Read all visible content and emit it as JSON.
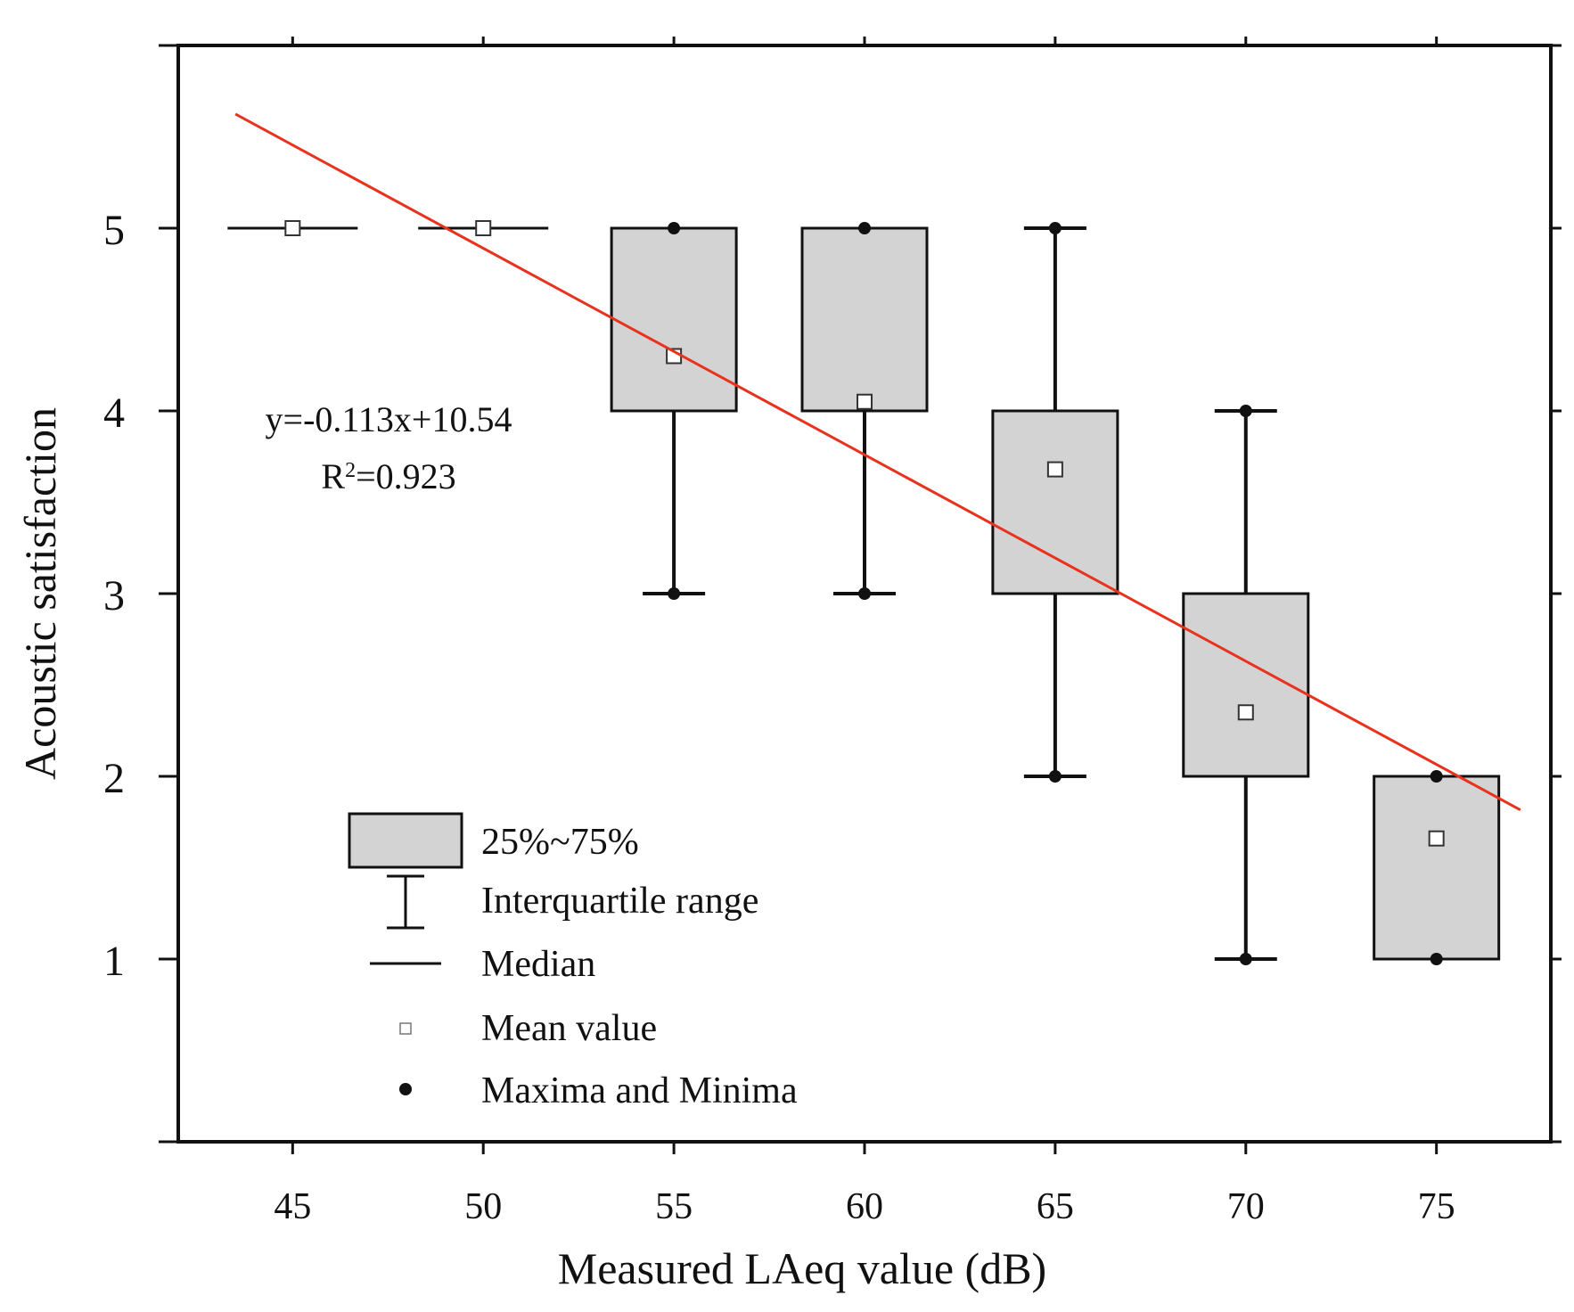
{
  "chart_data": {
    "type": "box",
    "title": "",
    "xlabel": "Measured LAeq value (dB)",
    "ylabel": "Acoustic satisfaction",
    "xlim": [
      42,
      78
    ],
    "ylim": [
      0,
      6
    ],
    "xticks": [
      "45",
      "50",
      "55",
      "60",
      "65",
      "70",
      "75"
    ],
    "yticks": [
      "1",
      "2",
      "3",
      "4",
      "5"
    ],
    "box_color": "#d3d3d3",
    "line_color": "#e8321e",
    "boxes": [
      {
        "x": 45,
        "min": 5,
        "q1": 5,
        "median": 5,
        "q3": 5,
        "max": 5,
        "mean": 5.0
      },
      {
        "x": 50,
        "min": 5,
        "q1": 5,
        "median": 5,
        "q3": 5,
        "max": 5,
        "mean": 5.0
      },
      {
        "x": 55,
        "min": 3,
        "q1": 4,
        "median": 5,
        "q3": 5,
        "max": 5,
        "mean": 4.3
      },
      {
        "x": 60,
        "min": 3,
        "q1": 4,
        "median": 5,
        "q3": 5,
        "max": 5,
        "mean": 4.05
      },
      {
        "x": 65,
        "min": 2,
        "q1": 3,
        "median": 4,
        "q3": 4,
        "max": 5,
        "mean": 3.68
      },
      {
        "x": 70,
        "min": 1,
        "q1": 2,
        "median": 3,
        "q3": 3,
        "max": 4,
        "mean": 2.35
      },
      {
        "x": 75,
        "min": 1,
        "q1": 1,
        "median": 2,
        "q3": 2,
        "max": 2,
        "mean": 1.66
      }
    ],
    "fit": {
      "slope": -0.113,
      "intercept": 10.54,
      "x_range": [
        43.5,
        77.2
      ]
    },
    "annotations": {
      "equation": "y=-0.113x+10.54",
      "r2_prefix": "R",
      "r2_sup": "2",
      "r2_value": "=0.923"
    },
    "legend": {
      "position": "bottom-left",
      "items": {
        "box": "25%~75%",
        "whisker": "Interquartile range",
        "median": "Median",
        "mean": "Mean value",
        "extrema": "Maxima and Minima"
      }
    }
  }
}
